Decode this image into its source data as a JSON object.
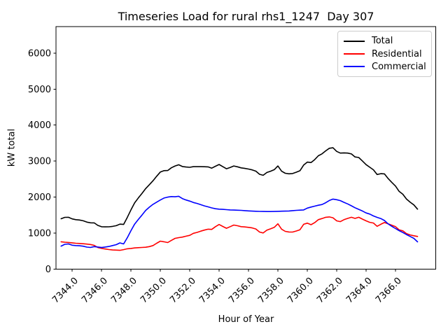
{
  "figure": {
    "title": "Timeseries Load for rural rhs1_1247  Day 307",
    "ylabel": "kW total",
    "xlabel": "Hour of Year"
  },
  "legend": {
    "items": [
      {
        "label": "Total",
        "color": "#000000"
      },
      {
        "label": "Residential",
        "color": "#ff0000"
      },
      {
        "label": "Commercial",
        "color": "#0000ff"
      }
    ]
  },
  "chart_data": {
    "type": "line",
    "title": "Timeseries Load for rural rhs1_1247  Day 307",
    "xlabel": "Hour of Year",
    "ylabel": "kW total",
    "xlim": [
      7342.9,
      7368.74
    ],
    "ylim": [
      0,
      6735
    ],
    "grid": false,
    "legend_position": "upper right",
    "x_ticks": [
      7344,
      7346,
      7348,
      7350,
      7352,
      7354,
      7356,
      7358,
      7360,
      7362,
      7364,
      7366
    ],
    "x_tick_labels": [
      "7344.0",
      "7346.0",
      "7348.0",
      "7350.0",
      "7352.0",
      "7354.0",
      "7356.0",
      "7358.0",
      "7360.0",
      "7362.0",
      "7364.0",
      "7366.0"
    ],
    "y_ticks": [
      0,
      1000,
      2000,
      3000,
      4000,
      5000,
      6000
    ],
    "y_tick_labels": [
      "0",
      "1000",
      "2000",
      "3000",
      "4000",
      "5000",
      "6000"
    ],
    "x": [
      7343.25,
      7343.5,
      7343.75,
      7344,
      7344.25,
      7344.5,
      7344.75,
      7345,
      7345.25,
      7345.5,
      7345.75,
      7346,
      7346.25,
      7346.5,
      7346.75,
      7347,
      7347.25,
      7347.5,
      7347.75,
      7348,
      7348.25,
      7348.5,
      7348.75,
      7349,
      7349.25,
      7349.5,
      7349.75,
      7350,
      7350.25,
      7350.5,
      7350.75,
      7351,
      7351.25,
      7351.5,
      7351.75,
      7352,
      7352.25,
      7352.5,
      7352.75,
      7353,
      7353.25,
      7353.5,
      7353.75,
      7354,
      7354.25,
      7354.5,
      7354.75,
      7355,
      7355.25,
      7355.5,
      7355.75,
      7356,
      7356.25,
      7356.5,
      7356.75,
      7357,
      7357.25,
      7357.5,
      7357.75,
      7358,
      7358.25,
      7358.5,
      7358.75,
      7359,
      7359.25,
      7359.5,
      7359.75,
      7360,
      7360.25,
      7360.5,
      7360.75,
      7361,
      7361.25,
      7361.5,
      7361.75,
      7362,
      7362.25,
      7362.5,
      7362.75,
      7363,
      7363.25,
      7363.5,
      7363.75,
      7364,
      7364.25,
      7364.5,
      7364.75,
      7365,
      7365.25,
      7365.5,
      7365.75,
      7366,
      7366.25,
      7366.5,
      7366.75,
      7367,
      7367.25,
      7367.5
    ],
    "series": [
      {
        "name": "Total",
        "color": "#000000",
        "values": [
          1400,
          1438,
          1440,
          1395,
          1375,
          1364,
          1343,
          1307,
          1287,
          1285,
          1215,
          1178,
          1174,
          1175,
          1188,
          1208,
          1250,
          1242,
          1435,
          1646,
          1838,
          1976,
          2102,
          2238,
          2345,
          2455,
          2580,
          2698,
          2735,
          2739,
          2814,
          2865,
          2898,
          2850,
          2835,
          2828,
          2845,
          2845,
          2845,
          2843,
          2840,
          2805,
          2858,
          2905,
          2845,
          2787,
          2825,
          2865,
          2841,
          2812,
          2797,
          2779,
          2757,
          2722,
          2633,
          2606,
          2685,
          2720,
          2762,
          2865,
          2720,
          2662,
          2648,
          2656,
          2692,
          2733,
          2890,
          2972,
          2960,
          3040,
          3149,
          3201,
          3285,
          3356,
          3371,
          3270,
          3222,
          3229,
          3222,
          3200,
          3115,
          3100,
          3005,
          2902,
          2830,
          2758,
          2628,
          2651,
          2645,
          2516,
          2408,
          2308,
          2160,
          2080,
          1945,
          1858,
          1784,
          1666
        ]
      },
      {
        "name": "Residential",
        "color": "#ff0000",
        "values": [
          760,
          748,
          740,
          730,
          720,
          714,
          705,
          695,
          685,
          660,
          600,
          578,
          560,
          545,
          533,
          528,
          522,
          542,
          565,
          576,
          588,
          596,
          602,
          608,
          625,
          655,
          720,
          778,
          760,
          739,
          798,
          856,
          875,
          890,
          915,
          938,
          995,
          1020,
          1055,
          1085,
          1110,
          1105,
          1180,
          1240,
          1185,
          1135,
          1180,
          1225,
          1205,
          1180,
          1172,
          1161,
          1145,
          1115,
          1030,
          1005,
          1085,
          1120,
          1160,
          1260,
          1110,
          1050,
          1032,
          1031,
          1060,
          1095,
          1245,
          1277,
          1235,
          1290,
          1374,
          1406,
          1440,
          1450,
          1426,
          1342,
          1320,
          1374,
          1410,
          1440,
          1410,
          1440,
          1390,
          1342,
          1300,
          1280,
          1190,
          1245,
          1295,
          1258,
          1218,
          1180,
          1090,
          1063,
          985,
          950,
          928,
          908
        ]
      },
      {
        "name": "Commercial",
        "color": "#0000ff",
        "values": [
          640,
          690,
          700,
          665,
          655,
          650,
          638,
          612,
          602,
          625,
          615,
          600,
          614,
          630,
          655,
          680,
          728,
          700,
          870,
          1070,
          1250,
          1380,
          1500,
          1630,
          1720,
          1800,
          1860,
          1920,
          1975,
          2000,
          2016,
          2009,
          2023,
          1960,
          1920,
          1890,
          1850,
          1825,
          1790,
          1758,
          1730,
          1700,
          1678,
          1665,
          1660,
          1652,
          1645,
          1640,
          1636,
          1632,
          1625,
          1618,
          1612,
          1607,
          1603,
          1601,
          1600,
          1600,
          1602,
          1605,
          1610,
          1612,
          1616,
          1625,
          1632,
          1638,
          1645,
          1695,
          1725,
          1750,
          1775,
          1795,
          1845,
          1906,
          1945,
          1928,
          1902,
          1855,
          1812,
          1760,
          1705,
          1660,
          1615,
          1560,
          1530,
          1478,
          1438,
          1406,
          1350,
          1258,
          1190,
          1128,
          1070,
          1017,
          960,
          908,
          856,
          758
        ]
      }
    ]
  }
}
